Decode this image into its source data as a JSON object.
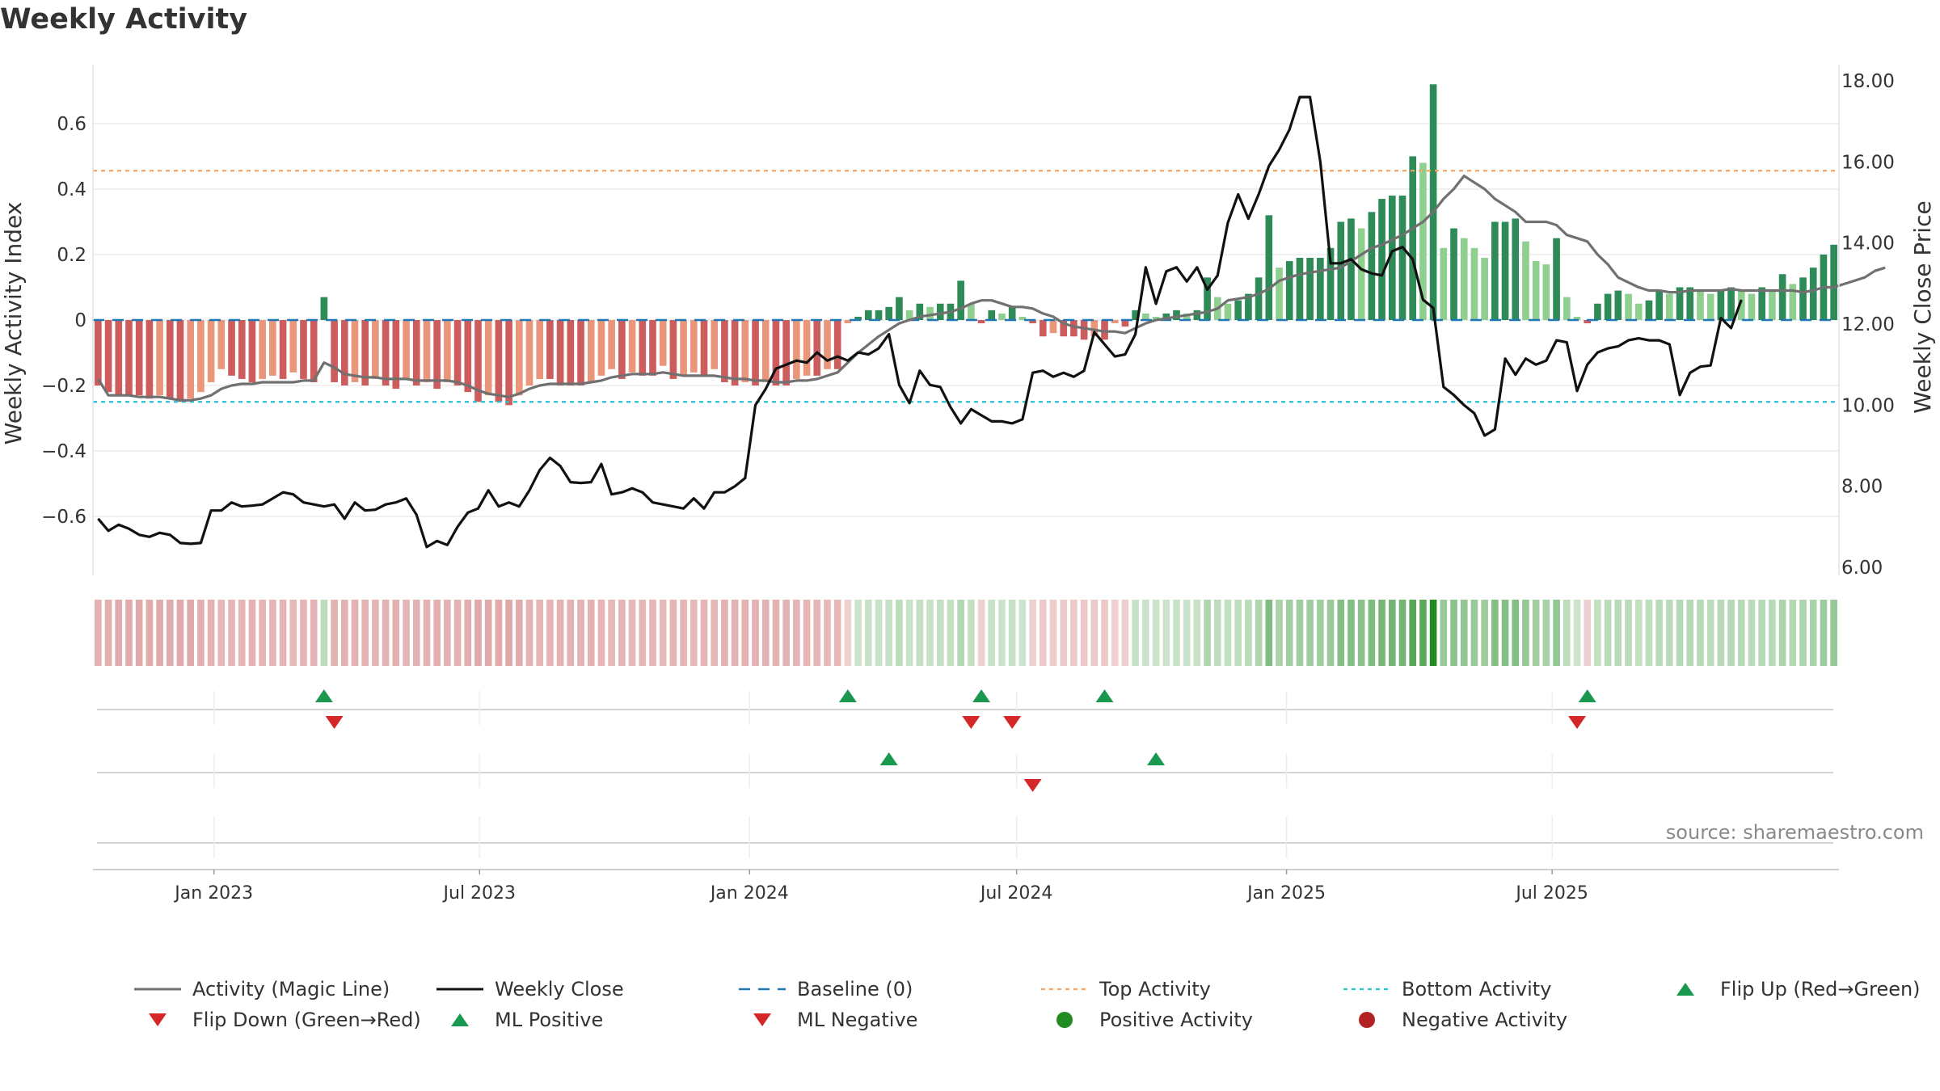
{
  "title": "Weekly Activity",
  "source": "source: sharemaestro.com",
  "colors": {
    "pos_dark": "#2e8b57",
    "pos_light": "#8fcf8f",
    "neg_dark": "#cd5c5c",
    "neg_light": "#e9967a",
    "magic_line": "#707070",
    "close_line": "#111111",
    "baseline": "#1f77b4",
    "top": "#f4a460",
    "bottom": "#22c4d4",
    "flip_up": "#1a9850",
    "flip_down": "#d62728",
    "dot_pos": "#228b22",
    "dot_neg": "#b22222"
  },
  "chart_data": {
    "type": "bar",
    "start_date": "2022-10-14",
    "interval_days": 7,
    "bars": [
      -0.2,
      -0.22,
      -0.23,
      -0.23,
      -0.23,
      -0.24,
      -0.23,
      -0.24,
      -0.25,
      -0.24,
      -0.22,
      -0.19,
      -0.15,
      -0.17,
      -0.18,
      -0.19,
      -0.18,
      -0.17,
      -0.18,
      -0.16,
      -0.18,
      -0.19,
      0.07,
      -0.19,
      -0.2,
      -0.19,
      -0.2,
      -0.18,
      -0.2,
      -0.21,
      -0.18,
      -0.2,
      -0.19,
      -0.21,
      -0.19,
      -0.2,
      -0.22,
      -0.25,
      -0.23,
      -0.25,
      -0.26,
      -0.23,
      -0.2,
      -0.18,
      -0.18,
      -0.2,
      -0.2,
      -0.2,
      -0.19,
      -0.17,
      -0.15,
      -0.18,
      -0.16,
      -0.17,
      -0.17,
      -0.14,
      -0.18,
      -0.17,
      -0.16,
      -0.17,
      -0.15,
      -0.19,
      -0.2,
      -0.19,
      -0.2,
      -0.19,
      -0.2,
      -0.2,
      -0.18,
      -0.17,
      -0.17,
      -0.15,
      -0.15,
      -0.01,
      0.01,
      0.03,
      0.03,
      0.04,
      0.07,
      0.03,
      0.05,
      0.04,
      0.05,
      0.05,
      0.12,
      0.05,
      -0.01,
      0.03,
      0.02,
      0.04,
      0.01,
      -0.01,
      -0.05,
      -0.04,
      -0.05,
      -0.05,
      -0.06,
      -0.05,
      -0.06,
      -0.01,
      -0.02,
      0.03,
      0.02,
      0.01,
      0.02,
      0.03,
      0.02,
      0.03,
      0.13,
      0.07,
      0.05,
      0.06,
      0.08,
      0.13,
      0.32,
      0.16,
      0.18,
      0.19,
      0.19,
      0.19,
      0.22,
      0.3,
      0.31,
      0.28,
      0.33,
      0.37,
      0.38,
      0.38,
      0.5,
      0.48,
      0.72,
      0.22,
      0.28,
      0.25,
      0.22,
      0.19,
      0.3,
      0.3,
      0.31,
      0.24,
      0.18,
      0.17,
      0.25,
      0.07,
      0.01,
      -0.01,
      0.05,
      0.08,
      0.09,
      0.08,
      0.05,
      0.06,
      0.09,
      0.08,
      0.1,
      0.1,
      0.09,
      0.08,
      0.09,
      0.1,
      0.09,
      0.08,
      0.1,
      0.09,
      0.14,
      0.11,
      0.13,
      0.16,
      0.2,
      0.23
    ],
    "magic_line": [
      -0.18,
      -0.23,
      -0.23,
      -0.23,
      -0.235,
      -0.235,
      -0.235,
      -0.24,
      -0.245,
      -0.245,
      -0.24,
      -0.23,
      -0.21,
      -0.2,
      -0.195,
      -0.195,
      -0.19,
      -0.19,
      -0.19,
      -0.19,
      -0.185,
      -0.185,
      -0.13,
      -0.145,
      -0.165,
      -0.17,
      -0.175,
      -0.175,
      -0.18,
      -0.18,
      -0.18,
      -0.185,
      -0.185,
      -0.185,
      -0.185,
      -0.19,
      -0.2,
      -0.215,
      -0.225,
      -0.23,
      -0.235,
      -0.225,
      -0.21,
      -0.2,
      -0.195,
      -0.195,
      -0.195,
      -0.195,
      -0.19,
      -0.185,
      -0.175,
      -0.17,
      -0.165,
      -0.165,
      -0.165,
      -0.16,
      -0.165,
      -0.17,
      -0.17,
      -0.17,
      -0.17,
      -0.175,
      -0.18,
      -0.18,
      -0.185,
      -0.185,
      -0.19,
      -0.19,
      -0.185,
      -0.185,
      -0.18,
      -0.17,
      -0.16,
      -0.13,
      -0.1,
      -0.075,
      -0.05,
      -0.03,
      -0.01,
      0.0,
      0.01,
      0.015,
      0.02,
      0.025,
      0.035,
      0.05,
      0.06,
      0.06,
      0.05,
      0.04,
      0.04,
      0.035,
      0.02,
      0.01,
      -0.01,
      -0.02,
      -0.025,
      -0.03,
      -0.035,
      -0.035,
      -0.04,
      -0.025,
      -0.01,
      0.0,
      0.005,
      0.01,
      0.015,
      0.02,
      0.025,
      0.035,
      0.06,
      0.065,
      0.07,
      0.08,
      0.095,
      0.12,
      0.13,
      0.14,
      0.145,
      0.15,
      0.155,
      0.16,
      0.18,
      0.2,
      0.22,
      0.23,
      0.245,
      0.26,
      0.28,
      0.3,
      0.33,
      0.37,
      0.4,
      0.44,
      0.42,
      0.4,
      0.37,
      0.35,
      0.33,
      0.3,
      0.3,
      0.3,
      0.29,
      0.26,
      0.25,
      0.24,
      0.2,
      0.17,
      0.13,
      0.115,
      0.1,
      0.09,
      0.09,
      0.085,
      0.085,
      0.09,
      0.09,
      0.09,
      0.09,
      0.095,
      0.09,
      0.09,
      0.09,
      0.09,
      0.09,
      0.09,
      0.085,
      0.09,
      0.1,
      0.1,
      0.11,
      0.12,
      0.13,
      0.15,
      0.16
    ],
    "weekly_close": [
      7.2,
      6.9,
      7.05,
      6.95,
      6.8,
      6.75,
      6.85,
      6.8,
      6.6,
      6.58,
      6.6,
      7.4,
      7.4,
      7.6,
      7.5,
      7.52,
      7.55,
      7.7,
      7.85,
      7.8,
      7.6,
      7.55,
      7.5,
      7.55,
      7.2,
      7.6,
      7.4,
      7.42,
      7.55,
      7.6,
      7.7,
      7.3,
      6.5,
      6.65,
      6.55,
      7.0,
      7.35,
      7.45,
      7.9,
      7.5,
      7.6,
      7.5,
      7.9,
      8.4,
      8.7,
      8.5,
      8.1,
      8.08,
      8.1,
      8.55,
      7.8,
      7.85,
      7.95,
      7.85,
      7.6,
      7.55,
      7.5,
      7.45,
      7.7,
      7.45,
      7.85,
      7.85,
      8.0,
      8.2,
      10.0,
      10.4,
      10.9,
      11.0,
      11.1,
      11.05,
      11.3,
      11.1,
      11.2,
      11.1,
      11.3,
      11.25,
      11.4,
      11.75,
      10.5,
      10.05,
      10.85,
      10.5,
      10.45,
      9.95,
      9.55,
      9.9,
      9.75,
      9.6,
      9.6,
      9.55,
      9.65,
      10.8,
      10.85,
      10.7,
      10.8,
      10.7,
      10.85,
      11.8,
      11.5,
      11.2,
      11.25,
      11.75,
      13.4,
      12.5,
      13.3,
      13.4,
      13.05,
      13.4,
      12.85,
      13.2,
      14.5,
      15.2,
      14.6,
      15.2,
      15.9,
      16.3,
      16.8,
      17.6,
      17.6,
      16.0,
      13.5,
      13.5,
      13.6,
      13.35,
      13.25,
      13.2,
      13.8,
      13.9,
      13.6,
      12.6,
      12.4,
      10.45,
      10.25,
      10.0,
      9.8,
      9.25,
      9.4,
      11.15,
      10.75,
      11.15,
      11.0,
      11.1,
      11.6,
      11.55,
      10.35,
      11.0,
      11.3,
      11.4,
      11.45,
      11.6,
      11.65,
      11.6,
      11.6,
      11.5,
      10.25,
      10.8,
      10.95,
      10.98,
      12.15,
      11.9,
      12.6
    ],
    "flip_up": [
      22,
      73,
      86,
      98,
      145
    ],
    "flip_down": [
      23,
      85,
      89,
      144
    ],
    "ml_positive": [
      77,
      103
    ],
    "ml_negative": [
      91
    ],
    "top_activity": 0.456,
    "bottom_activity": -0.25,
    "baseline": 0,
    "ylim_left": [
      -0.78,
      0.78
    ],
    "ylim_right": [
      5.8,
      18.4
    ],
    "yticks_left": [
      "0.6",
      "0.4",
      "0.2",
      "0",
      "−0.2",
      "−0.4",
      "−0.6"
    ],
    "ytick_values_left": [
      0.6,
      0.4,
      0.2,
      0,
      -0.2,
      -0.4,
      -0.6
    ],
    "yticks_right": [
      "18.00",
      "16.00",
      "14.00",
      "12.00",
      "10.00",
      "8.00",
      "6.00"
    ],
    "ytick_values_right": [
      18,
      16,
      14,
      12,
      10,
      8,
      6
    ],
    "xticks": [
      {
        "label": "Jan 2023",
        "date": "2023-01-01"
      },
      {
        "label": "Jul 2023",
        "date": "2023-07-01"
      },
      {
        "label": "Jan 2024",
        "date": "2024-01-01"
      },
      {
        "label": "Jul 2024",
        "date": "2024-07-01"
      },
      {
        "label": "Jan 2025",
        "date": "2025-01-01"
      },
      {
        "label": "Jul 2025",
        "date": "2025-07-01"
      }
    ],
    "ylabel": "Weekly Activity Index",
    "ylabel_right": "Weekly Close Price"
  },
  "legend": {
    "items": [
      {
        "key": "magic",
        "label": "Activity (Magic Line)"
      },
      {
        "key": "close",
        "label": "Weekly Close"
      },
      {
        "key": "baseline",
        "label": "Baseline (0)"
      },
      {
        "key": "top",
        "label": "Top Activity"
      },
      {
        "key": "bottom",
        "label": "Bottom Activity"
      },
      {
        "key": "flipup",
        "label": "Flip Up (Red→Green)"
      },
      {
        "key": "flipdown",
        "label": "Flip Down (Green→Red)"
      },
      {
        "key": "mlpos",
        "label": "ML Positive"
      },
      {
        "key": "mlneg",
        "label": "ML Negative"
      },
      {
        "key": "posact",
        "label": "Positive Activity"
      },
      {
        "key": "negact",
        "label": "Negative Activity"
      }
    ]
  }
}
